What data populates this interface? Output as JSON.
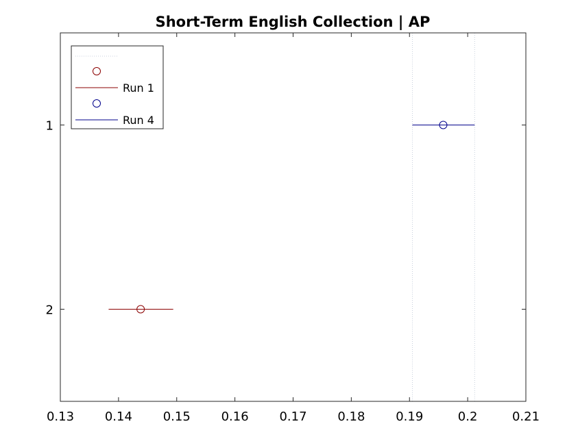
{
  "chart_data": {
    "type": "scatter",
    "title": "Short-Term English Collection | AP",
    "xlabel": "",
    "ylabel": "",
    "xlim": [
      0.13,
      0.21
    ],
    "ylim": [
      2.5,
      0.5
    ],
    "xticks": [
      "0.13",
      "0.14",
      "0.15",
      "0.16",
      "0.17",
      "0.18",
      "0.19",
      "0.2",
      "0.21"
    ],
    "yticks": [
      "1",
      "2"
    ],
    "grid": false,
    "legend_position": "top-left",
    "reference_lines_x": [
      0.1905,
      0.2012
    ],
    "series": [
      {
        "name": "Run 4",
        "y": 1,
        "x": 0.1958,
        "low": 0.1905,
        "high": 0.2012,
        "color": "#00008b"
      },
      {
        "name": "Run 1",
        "y": 2,
        "x": 0.1438,
        "low": 0.1383,
        "high": 0.1494,
        "color": "#8b0000"
      }
    ]
  }
}
